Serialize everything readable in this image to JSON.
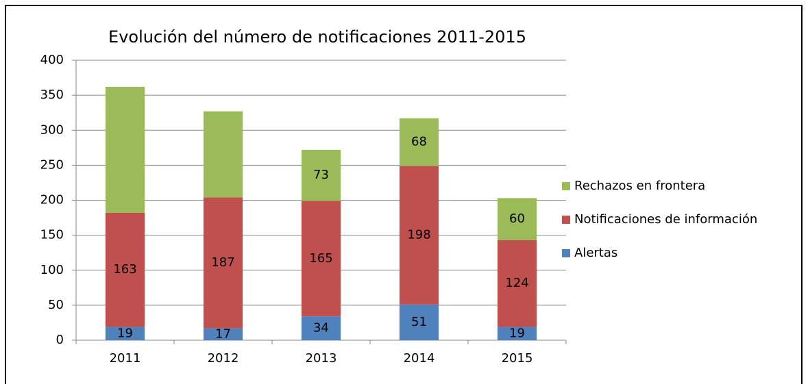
{
  "chart_data": {
    "type": "stacked_bar",
    "title": "Evolución del número de notificaciones 2011-2015",
    "categories": [
      "2011",
      "2012",
      "2013",
      "2014",
      "2015"
    ],
    "series": [
      {
        "name": "Alertas",
        "color": "#4f81bd",
        "values": [
          19,
          17,
          34,
          51,
          19
        ]
      },
      {
        "name": "Notificaciones de información",
        "color": "#c0504d",
        "values": [
          163,
          187,
          165,
          198,
          124
        ]
      },
      {
        "name": "Rechazos en frontera",
        "color": "#9bbb59",
        "values": [
          180,
          123,
          73,
          68,
          60
        ],
        "value_labels": [
          null,
          null,
          "73",
          "68",
          "60"
        ]
      }
    ],
    "ylim": [
      0,
      400
    ],
    "yticks": [
      0,
      50,
      100,
      150,
      200,
      250,
      300,
      350,
      400
    ],
    "grid": true,
    "legend": "right"
  }
}
